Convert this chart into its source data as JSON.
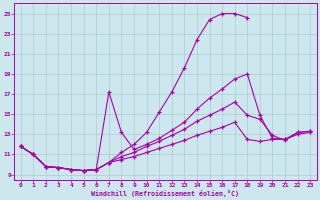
{
  "xlabel": "Windchill (Refroidissement éolien,°C)",
  "bg_color": "#cce8ee",
  "grid_color": "#aacccc",
  "line_color": "#aa00aa",
  "xlim": [
    -0.5,
    23.5
  ],
  "ylim": [
    8.5,
    26.0
  ],
  "xticks": [
    0,
    1,
    2,
    3,
    4,
    5,
    6,
    7,
    8,
    9,
    10,
    11,
    12,
    13,
    14,
    15,
    16,
    17,
    18,
    19,
    20,
    21,
    22,
    23
  ],
  "yticks": [
    9,
    11,
    13,
    15,
    17,
    19,
    21,
    23,
    25
  ],
  "curves": [
    {
      "x": [
        0,
        1,
        2,
        3,
        4,
        5,
        6,
        7,
        8,
        9,
        10,
        11,
        12,
        13,
        14,
        15,
        16,
        17,
        18
      ],
      "y": [
        11.8,
        11.0,
        9.8,
        9.7,
        9.5,
        9.4,
        9.5,
        10.2,
        11.2,
        12.0,
        13.2,
        15.2,
        17.2,
        19.6,
        22.4,
        24.4,
        25.0,
        25.0,
        24.6
      ]
    },
    {
      "x": [
        0,
        1,
        2,
        3,
        4,
        5,
        6,
        7,
        8,
        9,
        10,
        11,
        12,
        13,
        14,
        15,
        16,
        17,
        18,
        19,
        20,
        21,
        22,
        23
      ],
      "y": [
        11.8,
        11.0,
        9.8,
        9.7,
        9.5,
        9.4,
        9.5,
        17.2,
        13.2,
        11.5,
        12.0,
        12.6,
        13.4,
        14.2,
        15.5,
        16.6,
        17.5,
        18.5,
        19.0,
        14.9,
        12.6,
        12.5,
        13.2,
        13.3
      ]
    },
    {
      "x": [
        0,
        1,
        2,
        3,
        4,
        5,
        6,
        7,
        8,
        9,
        10,
        11,
        12,
        13,
        14,
        15,
        16,
        17,
        18,
        19,
        20,
        21,
        22,
        23
      ],
      "y": [
        11.8,
        11.0,
        9.8,
        9.7,
        9.5,
        9.4,
        9.5,
        10.2,
        10.8,
        11.2,
        11.8,
        12.3,
        12.9,
        13.5,
        14.3,
        14.9,
        15.5,
        16.2,
        14.9,
        14.5,
        12.9,
        12.4,
        13.2,
        13.3
      ]
    },
    {
      "x": [
        0,
        1,
        2,
        3,
        4,
        5,
        6,
        7,
        8,
        9,
        10,
        11,
        12,
        13,
        14,
        15,
        16,
        17,
        18,
        19,
        20,
        21,
        22,
        23
      ],
      "y": [
        11.8,
        11.0,
        9.8,
        9.7,
        9.5,
        9.4,
        9.5,
        10.2,
        10.5,
        10.8,
        11.2,
        11.6,
        12.0,
        12.4,
        12.9,
        13.3,
        13.7,
        14.2,
        12.5,
        12.3,
        12.5,
        12.5,
        13.0,
        13.2
      ]
    }
  ]
}
